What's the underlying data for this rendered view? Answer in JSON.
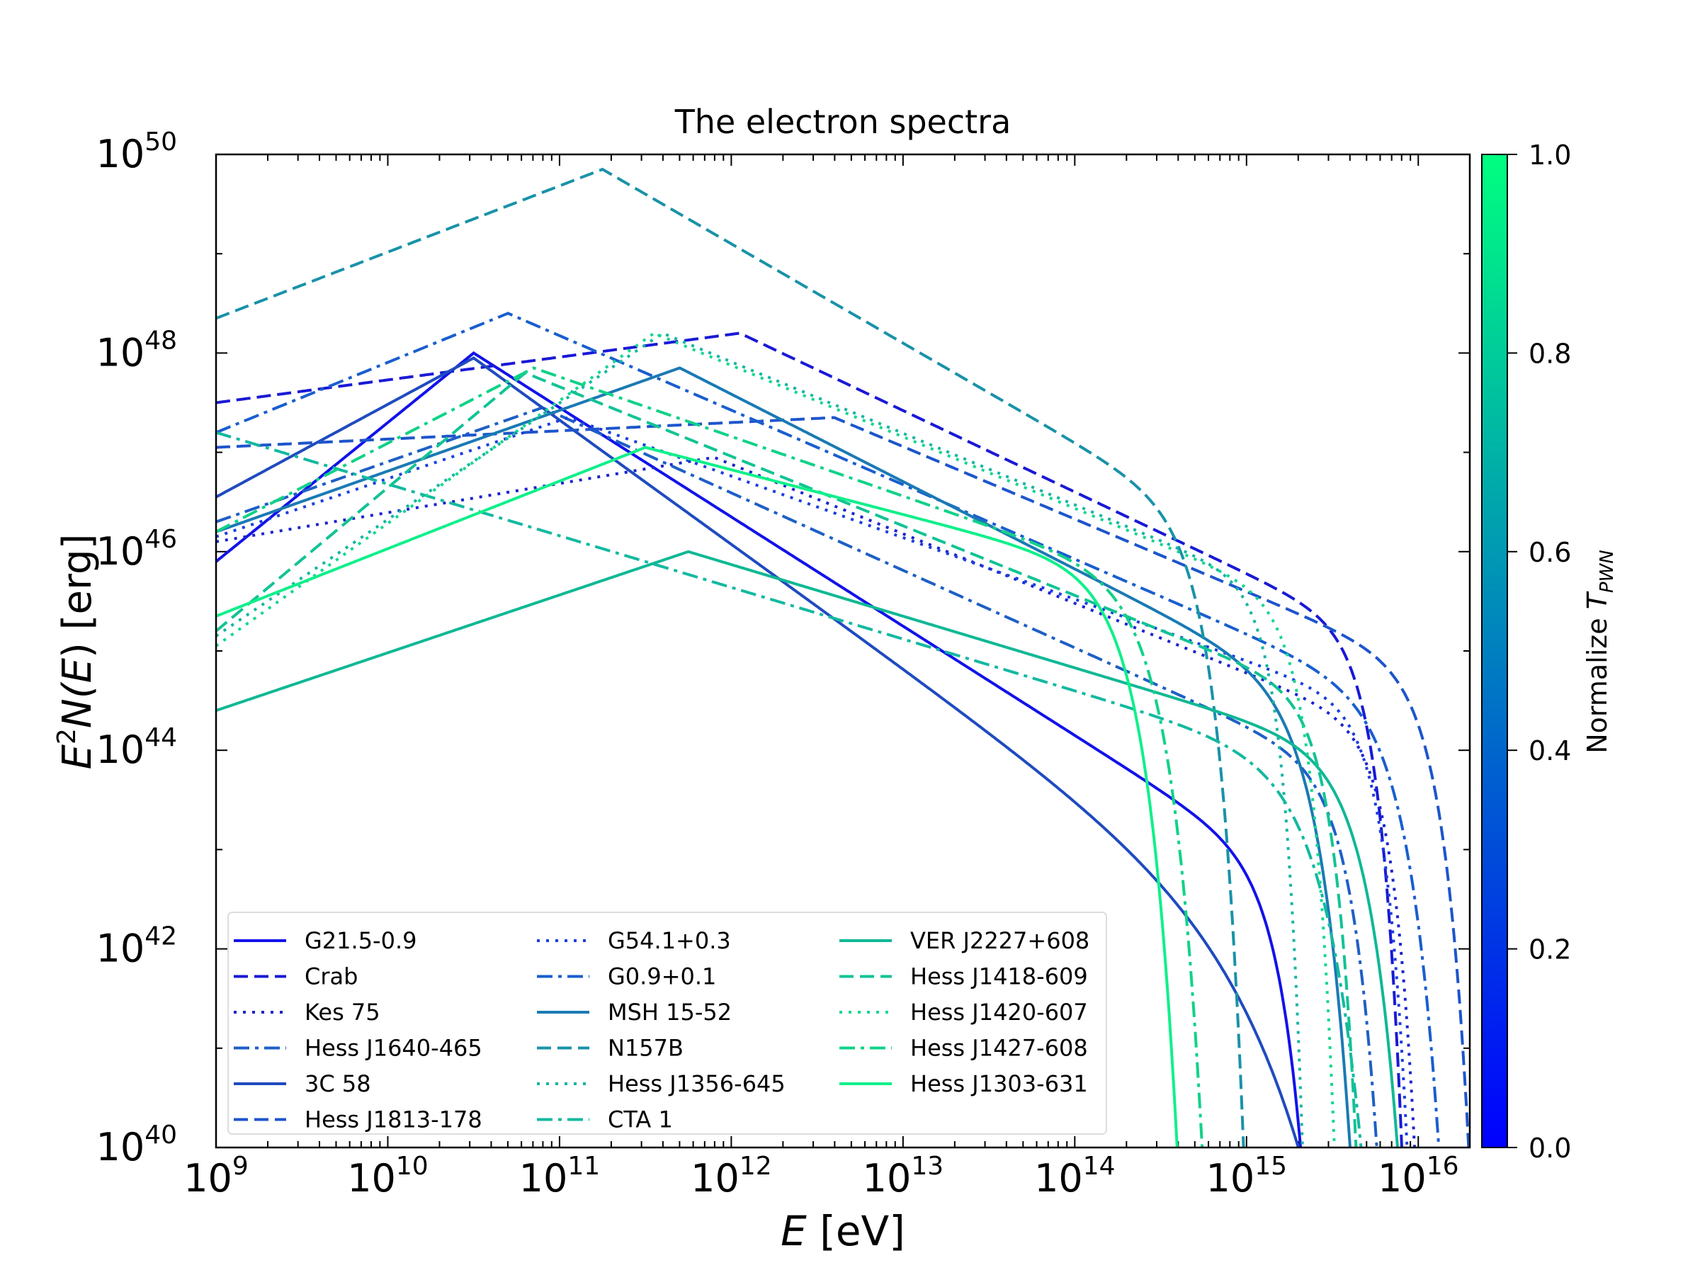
{
  "chart_data": {
    "type": "line",
    "title": "The electron spectra",
    "xlabel": {
      "main": "E",
      "rest": " [eV]"
    },
    "ylabel": {
      "prefix": "E",
      "sup": "2",
      "mid": "N(",
      "var": "E",
      "suffix": ") [erg]"
    },
    "x_scale": "log",
    "y_scale": "log",
    "xlim_log10": [
      9,
      16.3
    ],
    "ylim_log10": [
      40,
      50
    ],
    "x_tick_labels": [
      "9",
      "10",
      "11",
      "12",
      "13",
      "14",
      "15",
      "16"
    ],
    "y_tick_labels": [
      "40",
      "42",
      "44",
      "46",
      "48",
      "50"
    ],
    "colorbar": {
      "label": "Normalize",
      "label_var": "T",
      "label_sub": "PWN",
      "range": [
        0.0,
        1.0
      ],
      "tick_labels": [
        "0.0",
        "0.2",
        "0.4",
        "0.6",
        "0.8",
        "1.0"
      ],
      "color_low": "#0000ff",
      "color_high": "#00ff80"
    },
    "series": [
      {
        "name": "G21.5-0.9",
        "style": "solid",
        "color": "#1212ea",
        "logE_break": 10.5,
        "logY_start": 45.9,
        "logY_peak": 48.0,
        "slope_above": -1.1,
        "logE_cut": 15.05,
        "cut_shape": 3.0
      },
      {
        "name": "Crab",
        "style": "dashed",
        "color": "#1919d6",
        "logE_break": 12.05,
        "logY_start": 47.5,
        "logY_peak": 48.2,
        "slope_above": -0.82,
        "logE_cut": 15.6,
        "cut_shape": 3.5
      },
      {
        "name": "Kes 75",
        "style": "dotted",
        "color": "#1b24cf",
        "logE_break": 11.9,
        "logY_start": 46.1,
        "logY_peak": 46.95,
        "slope_above": -0.7,
        "logE_cut": 15.7,
        "cut_shape": 3.5
      },
      {
        "name": "Hess J1640-465",
        "style": "dashdot",
        "color": "#1e5fc6",
        "logE_break": 10.9,
        "logY_start": 46.3,
        "logY_peak": 47.45,
        "slope_above": -0.78,
        "logE_cut": 15.45,
        "cut_shape": 3.0
      },
      {
        "name": "3C 58",
        "style": "solid",
        "color": "#1f4bc0",
        "logE_break": 10.5,
        "logY_start": 46.55,
        "logY_peak": 47.95,
        "slope_above": -1.25,
        "logE_cut": 14.65,
        "cut_shape": 1.0
      },
      {
        "name": "Hess J1813-178",
        "style": "dashed",
        "color": "#1d55cc",
        "logE_break": 12.6,
        "logY_start": 47.05,
        "logY_peak": 47.35,
        "slope_above": -0.73,
        "logE_cut": 15.95,
        "cut_shape": 3.0
      },
      {
        "name": "G54.1+0.3",
        "style": "dotted",
        "color": "#1a3ede",
        "logE_break": 11.05,
        "logY_start": 46.15,
        "logY_peak": 47.35,
        "slope_above": -0.62,
        "logE_cut": 15.65,
        "cut_shape": 3.5
      },
      {
        "name": "G0.9+0.1",
        "style": "dashdot",
        "color": "#1a5ecf",
        "logE_break": 10.7,
        "logY_start": 47.2,
        "logY_peak": 48.4,
        "slope_above": -0.75,
        "logE_cut": 15.72,
        "cut_shape": 2.5
      },
      {
        "name": "MSH 15-52",
        "style": "solid",
        "color": "#1a7ab4",
        "logE_break": 11.7,
        "logY_start": 46.2,
        "logY_peak": 47.85,
        "slope_above": -0.88,
        "logE_cut": 15.2,
        "cut_shape": 2.5
      },
      {
        "name": "N157B",
        "style": "dashed",
        "color": "#1992a8",
        "logE_break": 11.25,
        "logY_start": 48.35,
        "logY_peak": 49.85,
        "slope_above": -1.0,
        "logE_cut": 14.6,
        "cut_shape": 3.0
      },
      {
        "name": "Hess J1356-645",
        "style": "dotted",
        "color": "#16b5a2",
        "logE_break": 11.6,
        "logY_start": 45.15,
        "logY_peak": 48.2,
        "slope_above": -0.72,
        "logE_cut": 15.05,
        "cut_shape": 4.0
      },
      {
        "name": "CTA 1",
        "style": "dashdot",
        "color": "#13b9a0",
        "logE_break": 9.0,
        "logY_start": 47.2,
        "logY_peak": 47.2,
        "slope_above": -0.52,
        "logE_cut": 15.2,
        "cut_shape": 2.0
      },
      {
        "name": "VER J2227+608",
        "style": "solid",
        "color": "#10b895",
        "logE_break": 11.75,
        "logY_start": 44.4,
        "logY_peak": 46.0,
        "slope_above": -0.52,
        "logE_cut": 15.5,
        "cut_shape": 2.5
      },
      {
        "name": "Hess J1418-609",
        "style": "dashed",
        "color": "#12c394",
        "logE_break": 10.8,
        "logY_start": 45.2,
        "logY_peak": 47.8,
        "slope_above": -0.7,
        "logE_cut": 15.35,
        "cut_shape": 3.5
      },
      {
        "name": "Hess J1420-607",
        "style": "dotted",
        "color": "#14d88f",
        "logE_break": 11.55,
        "logY_start": 45.05,
        "logY_peak": 48.2,
        "slope_above": -0.72,
        "logE_cut": 15.2,
        "cut_shape": 3.5
      },
      {
        "name": "Hess J1427-608",
        "style": "dashdot",
        "color": "#11d288",
        "logE_break": 10.85,
        "logY_start": 46.2,
        "logY_peak": 47.85,
        "slope_above": -0.6,
        "logE_cut": 14.3,
        "cut_shape": 2.5
      },
      {
        "name": "Hess J1303-631",
        "style": "solid",
        "color": "#0ff08a",
        "logE_break": 11.5,
        "logY_start": 45.35,
        "logY_peak": 47.05,
        "slope_above": -0.45,
        "logE_cut": 14.15,
        "cut_shape": 2.5
      }
    ],
    "legend": {
      "placement": "lower-left",
      "columns": 3
    }
  }
}
